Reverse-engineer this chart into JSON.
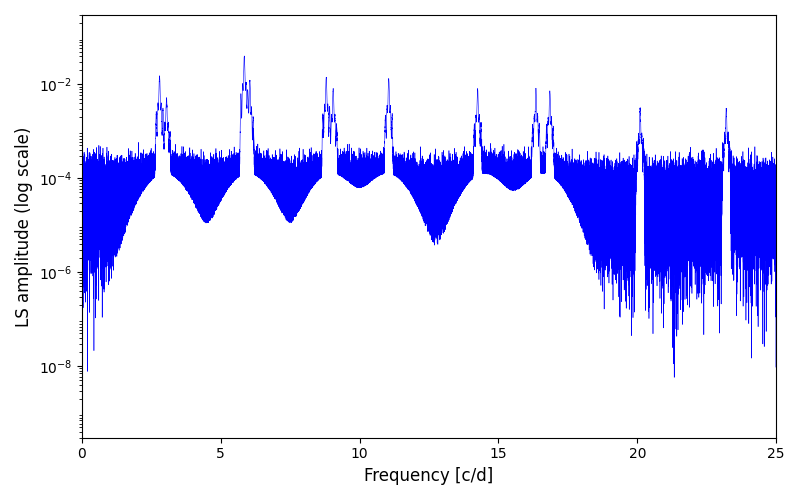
{
  "title": "",
  "xlabel": "Frequency [c/d]",
  "ylabel": "LS amplitude (log scale)",
  "xlim": [
    0,
    25
  ],
  "ylim": [
    3e-10,
    0.3
  ],
  "line_color": "#0000ff",
  "line_width": 0.4,
  "figsize": [
    8.0,
    5.0
  ],
  "dpi": 100,
  "noise_floor_log_mean": -4.3,
  "noise_floor_log_sigma": 1.8,
  "peak_freqs": [
    2.8,
    3.05,
    5.85,
    6.05,
    8.8,
    9.05,
    11.05,
    14.25,
    16.35,
    16.85,
    20.1,
    23.2
  ],
  "peak_heights": [
    0.015,
    0.005,
    0.04,
    0.012,
    0.014,
    0.008,
    0.013,
    0.008,
    0.008,
    0.007,
    0.003,
    0.003
  ],
  "peak_sigma": 0.018,
  "cluster_centers": [
    3.0,
    6.0,
    9.0,
    11.0,
    14.5,
    16.6
  ],
  "cluster_sigma": 0.6,
  "cluster_boost": 2.5,
  "seed": 123,
  "n_points": 60000,
  "yticks": [
    1e-08,
    1e-06,
    0.0001,
    0.01
  ]
}
